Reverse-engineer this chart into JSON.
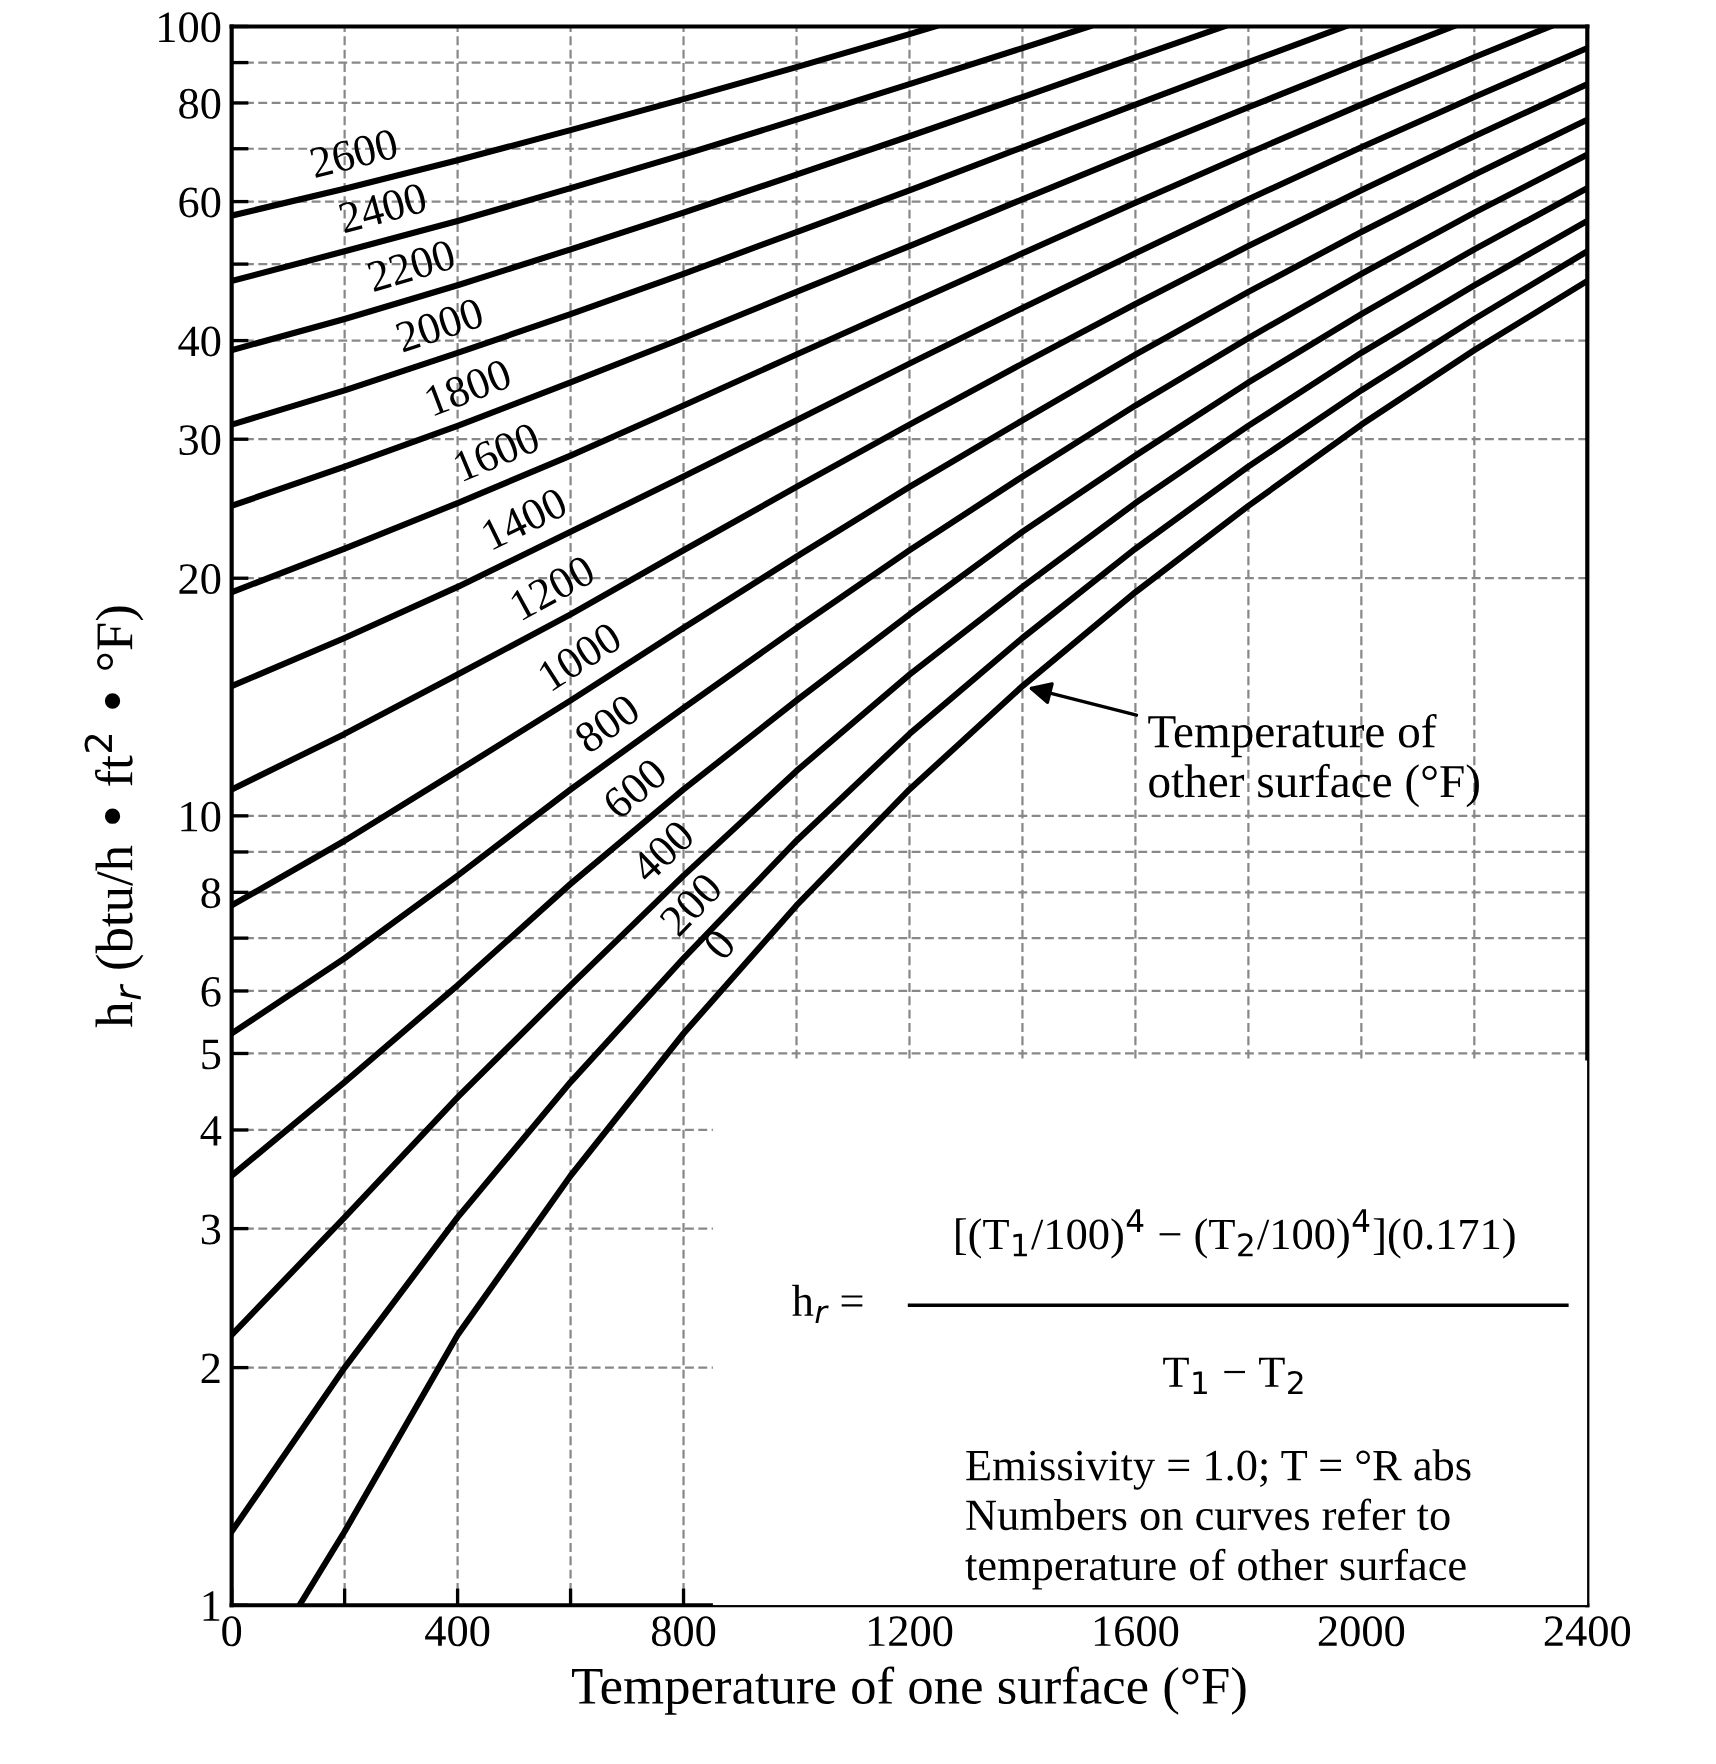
{
  "chart_data": {
    "type": "line",
    "xlabel": "Temperature of one surface (°F)",
    "ylabel": "h$_{r}$ (btu/h • ft$^{2}$ • °F)",
    "log": "y",
    "xlim": [
      0,
      2400
    ],
    "ylim": [
      1,
      100
    ],
    "xticks": [
      0,
      {
        "value": 200,
        "label": null
      },
      400,
      {
        "value": 600,
        "label": null
      },
      800,
      {
        "value": 1000,
        "label": null
      },
      1200,
      {
        "value": 1400,
        "label": null
      },
      1600,
      {
        "value": 1800,
        "label": null
      },
      2000,
      {
        "value": 2200,
        "label": null
      },
      2400
    ],
    "yticks": [
      1,
      2,
      3,
      4,
      5,
      6,
      {
        "value": 7,
        "label": null
      },
      8,
      {
        "value": 9,
        "label": null
      },
      10,
      20,
      30,
      40,
      {
        "value": 50,
        "label": null
      },
      60,
      {
        "value": 70,
        "label": null
      },
      80,
      {
        "value": 90,
        "label": null
      },
      100
    ],
    "grid": true,
    "legend": false,
    "marker": "none",
    "line_style": "solid",
    "series": [
      {
        "name": "2600",
        "color": "#000000",
        "x": [
          0,
          200,
          400,
          600,
          800,
          1000,
          1200,
          1245
        ],
        "values": [
          57.6,
          62.3,
          67.7,
          73.9,
          80.9,
          88.8,
          97.8,
          100
        ]
      },
      {
        "name": "2400",
        "color": "#000000",
        "x": [
          0,
          200,
          400,
          600,
          800,
          1000,
          1200,
          1400,
          1518
        ],
        "values": [
          47.6,
          51.9,
          56.7,
          62.4,
          68.8,
          76.2,
          84.5,
          93.9,
          100
        ]
      },
      {
        "name": "2200",
        "color": "#000000",
        "x": [
          0,
          200,
          400,
          600,
          800,
          1000,
          1200,
          1400,
          1600,
          1757
        ],
        "values": [
          38.9,
          42.6,
          47.0,
          52.2,
          58.1,
          64.9,
          72.6,
          81.4,
          91.4,
          100
        ]
      },
      {
        "name": "2000",
        "color": "#000000",
        "x": [
          0,
          200,
          400,
          600,
          800,
          1000,
          1200,
          1400,
          1600,
          1800,
          1971
        ],
        "values": [
          31.3,
          34.6,
          38.6,
          43.2,
          48.6,
          54.9,
          62.0,
          70.3,
          79.6,
          90.1,
          100
        ]
      },
      {
        "name": "1800",
        "color": "#000000",
        "x": [
          0,
          200,
          400,
          600,
          800,
          1000,
          1200,
          1400,
          1600,
          1800,
          2000,
          2162
        ],
        "values": [
          24.7,
          27.7,
          31.2,
          35.4,
          40.3,
          46.1,
          52.7,
          60.4,
          69.1,
          79.0,
          90.1,
          100
        ]
      },
      {
        "name": "1600",
        "color": "#000000",
        "x": [
          0,
          200,
          400,
          600,
          800,
          1000,
          1200,
          1400,
          1600,
          1800,
          2000,
          2200,
          2334
        ],
        "values": [
          19.2,
          21.8,
          24.9,
          28.6,
          33.1,
          38.4,
          44.5,
          51.6,
          59.8,
          69.1,
          79.6,
          91.4,
          100
        ]
      },
      {
        "name": "1400",
        "color": "#000000",
        "x": [
          0,
          200,
          400,
          600,
          800,
          1000,
          1200,
          1400,
          1600,
          1800,
          2000,
          2200,
          2400
        ],
        "values": [
          14.6,
          16.8,
          19.5,
          22.9,
          26.9,
          31.7,
          37.4,
          44.0,
          51.6,
          60.4,
          70.3,
          81.4,
          93.9
        ]
      },
      {
        "name": "1200",
        "color": "#000000",
        "x": [
          0,
          200,
          400,
          600,
          800,
          1000,
          1200,
          1400,
          1600,
          1800,
          2000,
          2200,
          2400
        ],
        "values": [
          10.8,
          12.7,
          15.1,
          18.0,
          21.7,
          26.1,
          31.3,
          37.4,
          44.5,
          52.7,
          62.0,
          72.6,
          84.5
        ]
      },
      {
        "name": "1000",
        "color": "#000000",
        "x": [
          0,
          200,
          400,
          600,
          800,
          1000,
          1200,
          1400,
          1600,
          1800,
          2000,
          2200,
          2400
        ],
        "values": [
          7.7,
          9.3,
          11.4,
          14.0,
          17.3,
          21.3,
          26.1,
          31.7,
          38.4,
          46.1,
          54.9,
          64.9,
          76.2
        ]
      },
      {
        "name": "800",
        "color": "#000000",
        "x": [
          0,
          200,
          400,
          600,
          800,
          1000,
          1200,
          1400,
          1600,
          1800,
          2000,
          2200,
          2400
        ],
        "values": [
          5.3,
          6.6,
          8.4,
          10.8,
          13.7,
          17.3,
          21.7,
          26.9,
          33.1,
          40.3,
          48.6,
          58.1,
          68.8
        ]
      },
      {
        "name": "600",
        "color": "#000000",
        "x": [
          0,
          200,
          400,
          600,
          800,
          1000,
          1200,
          1400,
          1600,
          1800,
          2000,
          2200,
          2400
        ],
        "values": [
          3.5,
          4.6,
          6.1,
          8.2,
          10.8,
          14.0,
          18.0,
          22.9,
          28.6,
          35.4,
          43.2,
          52.2,
          62.4
        ]
      },
      {
        "name": "400",
        "color": "#000000",
        "x": [
          0,
          200,
          400,
          600,
          800,
          1000,
          1200,
          1400,
          1600,
          1800,
          2000,
          2200,
          2400
        ],
        "values": [
          2.2,
          3.1,
          4.4,
          6.1,
          8.4,
          11.4,
          15.1,
          19.5,
          24.9,
          31.2,
          38.6,
          47.0,
          56.7
        ]
      },
      {
        "name": "200",
        "color": "#000000",
        "x": [
          0,
          200,
          400,
          600,
          800,
          1000,
          1200,
          1400,
          1600,
          1800,
          2000,
          2200,
          2400
        ],
        "values": [
          1.24,
          2.0,
          3.1,
          4.6,
          6.6,
          9.3,
          12.7,
          16.8,
          21.8,
          27.7,
          34.6,
          42.6,
          51.9
        ]
      },
      {
        "name": "0",
        "color": "#000000",
        "x": [
          120,
          200,
          400,
          600,
          800,
          1000,
          1200,
          1400,
          1600,
          1800,
          2000,
          2200,
          2400
        ],
        "values": [
          1,
          1.24,
          2.2,
          3.5,
          5.3,
          7.7,
          10.8,
          14.6,
          19.2,
          24.7,
          31.3,
          38.9,
          47.6
        ]
      }
    ],
    "annotations": [
      {
        "text": "Temperature of\nother surface (°F)",
        "x": 1400,
        "y": 14.6
      },
      "[(T$_{1}$/100)$^{4}$ − (T$_{2}$/100)$^{4}$](0.171)",
      "h$_{r}$ =",
      "T$_{1}$ − T$_{2}$",
      "Emissivity = 1.0; T = °R abs\nNumbers on curves refer to\ntemperature of other surface"
    ]
  }
}
